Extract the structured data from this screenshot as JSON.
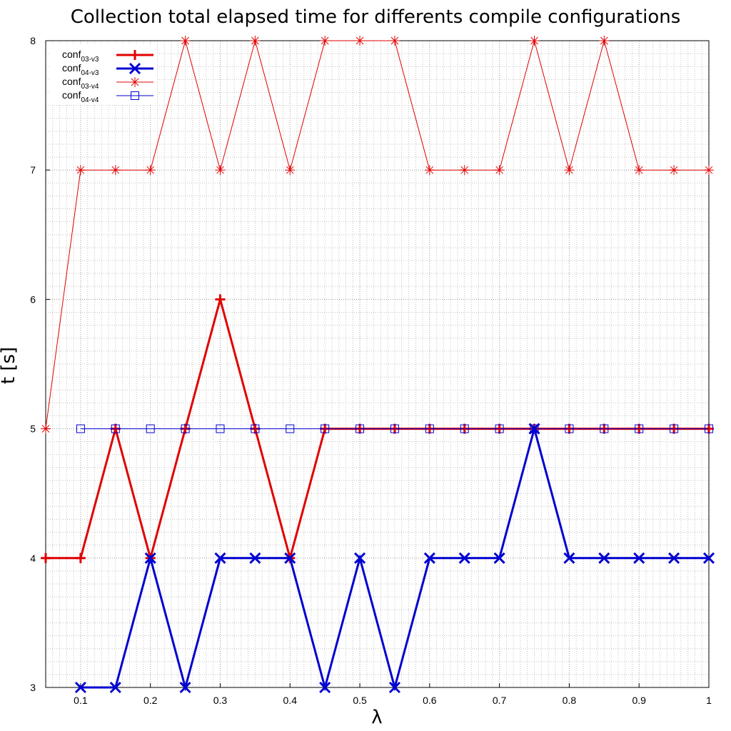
{
  "chart_data": {
    "type": "line",
    "title": "Collection total elapsed time for differents compile configurations",
    "xlabel": "λ",
    "ylabel": "t [s]",
    "xlim": [
      0.05,
      1.0
    ],
    "ylim": [
      3,
      8
    ],
    "xticks": [
      "0.1",
      "0.2",
      "0.3",
      "0.4",
      "0.5",
      "0.6",
      "0.7",
      "0.8",
      "0.9",
      "1"
    ],
    "yticks": [
      "3",
      "4",
      "5",
      "6",
      "7",
      "8"
    ],
    "grid": true,
    "legend_position": "top-left",
    "series": [
      {
        "name": "conf",
        "subscript": "03-v3",
        "color": "#e00000",
        "marker": "plus",
        "style": "thick",
        "x": [
          0.05,
          0.1,
          0.15,
          0.2,
          0.25,
          0.3,
          0.35,
          0.4,
          0.45,
          0.5,
          0.55,
          0.6,
          0.65,
          0.7,
          0.75,
          0.8,
          0.85,
          0.9,
          0.95,
          1.0
        ],
        "y": [
          4,
          4,
          5,
          4,
          5,
          6,
          5,
          4,
          5,
          5,
          5,
          5,
          5,
          5,
          5,
          5,
          5,
          5,
          5,
          5
        ]
      },
      {
        "name": "conf",
        "subscript": "04-v3",
        "color": "#0000d0",
        "marker": "cross",
        "style": "thick",
        "x": [
          0.1,
          0.15,
          0.2,
          0.25,
          0.3,
          0.35,
          0.4,
          0.45,
          0.5,
          0.55,
          0.6,
          0.65,
          0.7,
          0.75,
          0.8,
          0.85,
          0.9,
          0.95,
          1.0
        ],
        "y": [
          3,
          3,
          4,
          3,
          4,
          4,
          4,
          3,
          4,
          3,
          4,
          4,
          4,
          5,
          4,
          4,
          4,
          4,
          4
        ]
      },
      {
        "name": "conf",
        "subscript": "03-v4",
        "color": "#e00000",
        "marker": "star",
        "style": "thin",
        "x": [
          0.05,
          0.1,
          0.15,
          0.2,
          0.25,
          0.3,
          0.35,
          0.4,
          0.45,
          0.5,
          0.55,
          0.6,
          0.65,
          0.7,
          0.75,
          0.8,
          0.85,
          0.9,
          0.95,
          1.0
        ],
        "y": [
          5,
          7,
          7,
          7,
          8,
          7,
          8,
          7,
          8,
          8,
          8,
          7,
          7,
          7,
          8,
          7,
          8,
          7,
          7,
          7
        ]
      },
      {
        "name": "conf",
        "subscript": "04-v4",
        "color": "#0000d0",
        "marker": "square",
        "style": "thin",
        "x": [
          0.1,
          0.15,
          0.2,
          0.25,
          0.3,
          0.35,
          0.4,
          0.45,
          0.5,
          0.55,
          0.6,
          0.65,
          0.7,
          0.75,
          0.8,
          0.85,
          0.9,
          0.95,
          1.0
        ],
        "y": [
          5,
          5,
          5,
          5,
          5,
          5,
          5,
          5,
          5,
          5,
          5,
          5,
          5,
          5,
          5,
          5,
          5,
          5,
          5
        ]
      }
    ]
  }
}
